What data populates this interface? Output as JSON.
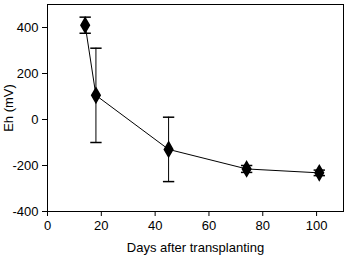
{
  "chart_data": {
    "type": "line",
    "x_label": "Days after transplanting",
    "y_label": "Eh (mV)",
    "x": [
      14,
      18,
      45,
      74,
      101
    ],
    "values": [
      410,
      105,
      -130,
      -215,
      -232
    ],
    "error": [
      35,
      205,
      140,
      15,
      12
    ],
    "color": "#000000",
    "marker": "diamond",
    "line_style": "solid",
    "xlim": [
      0,
      110
    ],
    "xticks": [
      0,
      20,
      40,
      60,
      80,
      100
    ],
    "ylim": [
      -400,
      500
    ],
    "yticks": [
      -400,
      -200,
      0,
      200,
      400
    ],
    "grid": false
  }
}
